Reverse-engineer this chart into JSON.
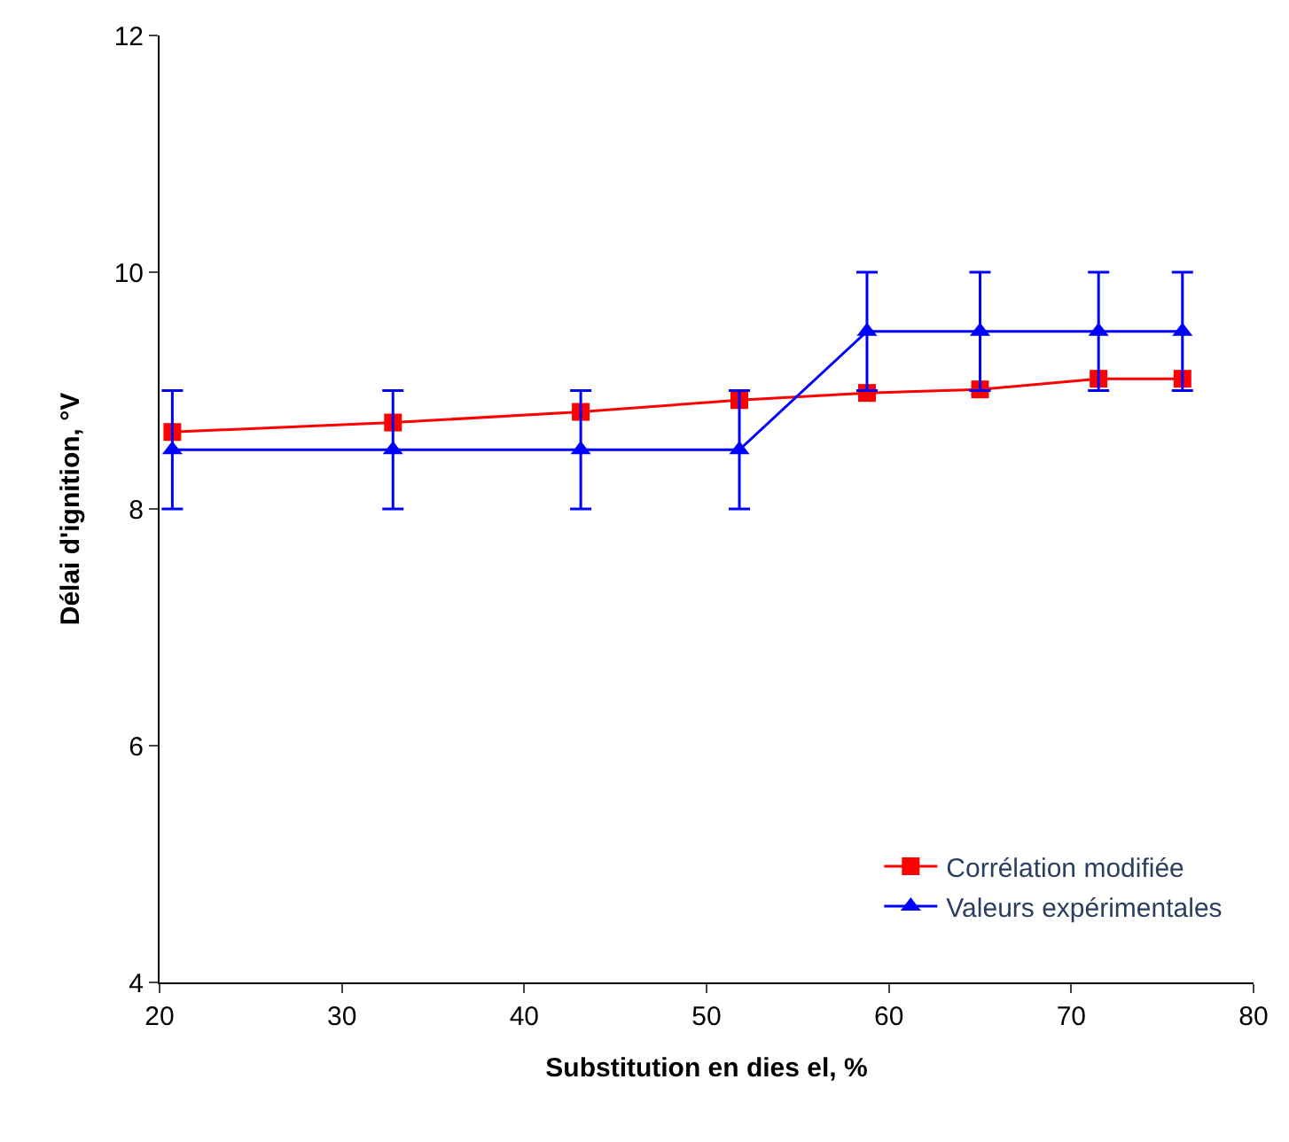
{
  "chart_data": {
    "type": "line",
    "xlabel": "Substitution en dies el, %",
    "ylabel": "Délai d'ignition, °V",
    "xlim": [
      20,
      80
    ],
    "xticks": [
      20,
      30,
      40,
      50,
      60,
      70,
      80
    ],
    "ylim": [
      4,
      12
    ],
    "yticks": [
      4,
      6,
      8,
      10,
      12
    ],
    "grid": false,
    "legend": "bottom right",
    "series": [
      {
        "name": "Corrélation modifiée",
        "color": "#ff0000",
        "marker": "square",
        "x": [
          20.7,
          32.8,
          43.1,
          51.8,
          58.8,
          65.0,
          71.5,
          76.1
        ],
        "values": [
          8.65,
          8.73,
          8.82,
          8.92,
          8.98,
          9.01,
          9.1,
          9.1
        ]
      },
      {
        "name": "Valeurs expérimentales",
        "color": "#0000ff",
        "marker": "triangle",
        "x": [
          20.7,
          32.8,
          43.1,
          51.8,
          58.8,
          65.0,
          71.5,
          76.1
        ],
        "values": [
          8.5,
          8.5,
          8.5,
          8.5,
          9.5,
          9.5,
          9.5,
          9.5
        ],
        "errors": [
          0.5,
          0.5,
          0.5,
          0.5,
          0.5,
          0.5,
          0.5,
          0.5
        ]
      }
    ]
  }
}
